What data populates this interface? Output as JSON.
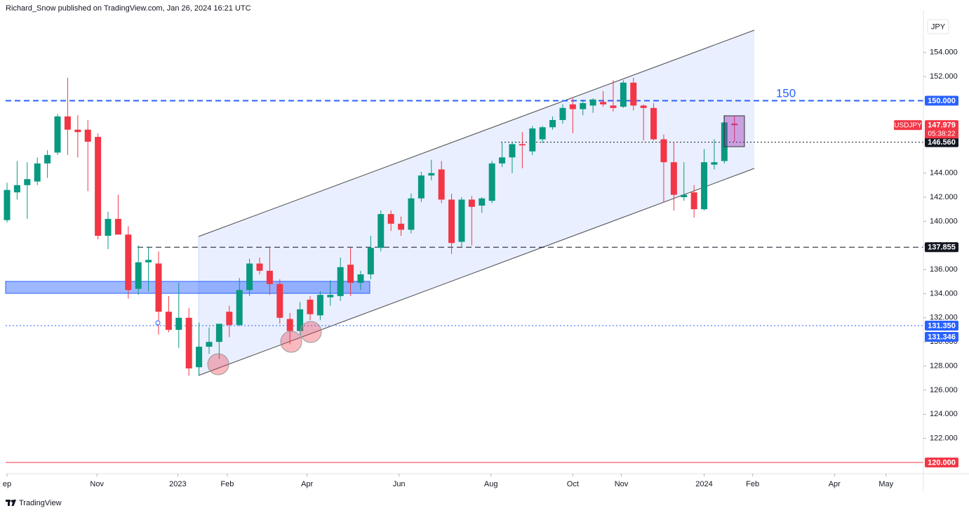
{
  "header": {
    "text": "Richard_Snow published on TradingView.com, Jan 26, 2024 16:21 UTC"
  },
  "footer": {
    "brand": "TradingView"
  },
  "chart_data": {
    "type": "candlestick",
    "currency": "JPY",
    "up_color": "#089981",
    "down_color": "#f23645",
    "x": [
      0,
      1,
      2,
      3,
      4,
      5,
      6,
      7,
      8,
      9,
      10,
      11,
      12,
      13,
      14,
      15,
      16,
      17,
      18,
      19,
      20,
      21,
      22,
      23,
      24,
      25,
      26,
      27,
      28,
      29,
      30,
      31,
      32,
      33,
      34,
      35,
      36,
      37,
      38,
      39,
      40,
      41,
      42,
      43,
      44,
      45,
      46,
      47,
      48,
      49,
      50,
      51,
      52,
      53,
      54,
      55,
      56,
      57,
      58,
      59,
      60,
      61,
      62,
      63,
      64,
      65,
      66,
      67,
      68,
      69,
      70,
      71,
      72
    ],
    "open": [
      140.1,
      142.4,
      143.0,
      143.3,
      144.8,
      145.7,
      148.7,
      147.6,
      147.6,
      147.0,
      138.8,
      140.2,
      138.9,
      134.4,
      136.6,
      136.5,
      132.5,
      131.0,
      132.0,
      127.9,
      129.6,
      130.0,
      132.5,
      131.4,
      134.3,
      136.5,
      135.9,
      134.8,
      131.9,
      130.9,
      133.5,
      132.2,
      133.7,
      133.8,
      136.4,
      134.9,
      135.6,
      137.8,
      140.6,
      139.8,
      139.3,
      141.9,
      143.8,
      144.3,
      141.8,
      138.3,
      141.8,
      141.3,
      141.7,
      144.8,
      145.3,
      146.4,
      145.8,
      146.8,
      147.8,
      148.4,
      149.7,
      149.3,
      149.6,
      149.9,
      149.6,
      149.5,
      151.5,
      149.6,
      149.4,
      146.8,
      144.9,
      142.0,
      142.4,
      141.0,
      144.7,
      145.0,
      148.1
    ],
    "high": [
      143.2,
      145.0,
      144.9,
      145.3,
      145.9,
      148.9,
      151.9,
      148.8,
      148.4,
      147.3,
      140.8,
      142.2,
      139.6,
      138.0,
      137.9,
      137.5,
      133.8,
      134.9,
      132.8,
      131.6,
      131.2,
      131.5,
      133.0,
      135.3,
      136.9,
      137.0,
      137.9,
      135.2,
      132.4,
      133.3,
      133.8,
      134.2,
      135.1,
      137.0,
      137.8,
      135.9,
      138.8,
      140.9,
      140.9,
      140.4,
      142.3,
      144.1,
      145.1,
      145.0,
      142.3,
      142.0,
      142.1,
      142.0,
      145.0,
      146.6,
      146.6,
      147.4,
      147.9,
      147.9,
      148.7,
      149.7,
      150.2,
      150.1,
      150.2,
      150.8,
      151.7,
      151.7,
      151.9,
      149.7,
      149.8,
      147.2,
      146.6,
      144.9,
      143.0,
      146.0,
      146.8,
      148.8,
      148.7
    ],
    "low": [
      139.9,
      141.8,
      140.2,
      143.0,
      143.6,
      145.5,
      145.5,
      145.3,
      142.5,
      138.5,
      137.7,
      138.9,
      133.6,
      133.9,
      134.2,
      130.6,
      130.8,
      129.5,
      127.2,
      127.2,
      129.0,
      128.6,
      130.4,
      131.3,
      133.8,
      135.6,
      133.9,
      131.5,
      129.8,
      130.6,
      131.8,
      131.8,
      133.0,
      133.4,
      133.8,
      134.3,
      135.2,
      137.5,
      139.2,
      138.8,
      139.0,
      141.6,
      143.4,
      141.5,
      137.3,
      137.9,
      138.0,
      140.7,
      141.5,
      144.5,
      144.0,
      144.4,
      145.5,
      146.5,
      147.6,
      148.1,
      147.3,
      148.8,
      149.0,
      149.5,
      149.1,
      149.4,
      149.2,
      146.7,
      146.7,
      141.6,
      140.9,
      141.7,
      140.3,
      140.9,
      144.3,
      144.8,
      146.6
    ],
    "close": [
      142.6,
      143.0,
      143.5,
      144.8,
      145.5,
      148.7,
      147.6,
      147.4,
      146.6,
      138.8,
      140.2,
      138.9,
      134.3,
      136.6,
      136.8,
      132.5,
      131.0,
      132.0,
      127.8,
      129.6,
      130.0,
      131.5,
      131.4,
      134.3,
      136.5,
      135.9,
      134.8,
      132.0,
      130.9,
      132.7,
      132.3,
      133.9,
      133.9,
      136.2,
      134.9,
      135.6,
      137.8,
      140.6,
      139.8,
      139.3,
      141.9,
      143.8,
      144.0,
      141.8,
      138.2,
      141.8,
      141.2,
      141.9,
      144.8,
      145.3,
      146.4,
      146.3,
      147.7,
      147.8,
      148.4,
      149.4,
      149.3,
      149.8,
      150.1,
      149.7,
      149.4,
      151.5,
      149.6,
      149.4,
      146.8,
      144.9,
      142.2,
      142.2,
      141.0,
      144.9,
      144.9,
      148.2,
      147.979
    ],
    "xlim": [
      -0.14,
      90.7
    ],
    "xticks": [
      {
        "value": 0,
        "label": "ep"
      },
      {
        "value": 8.9,
        "label": "Nov"
      },
      {
        "value": 16.9,
        "label": "2023"
      },
      {
        "value": 21.8,
        "label": "Feb"
      },
      {
        "value": 29.7,
        "label": "Apr"
      },
      {
        "value": 38.8,
        "label": "Jun"
      },
      {
        "value": 47.9,
        "label": "Aug"
      },
      {
        "value": 56,
        "label": "Oct"
      },
      {
        "value": 60.8,
        "label": "Nov"
      },
      {
        "value": 69,
        "label": "2024"
      },
      {
        "value": 73.8,
        "label": "Feb"
      },
      {
        "value": 81.9,
        "label": "Apr"
      },
      {
        "value": 87,
        "label": "May"
      }
    ],
    "ylim": [
      119.07,
      157.48
    ],
    "yticks": [
      {
        "value": 122,
        "label": "122.000"
      },
      {
        "value": 124,
        "label": "124.000"
      },
      {
        "value": 126,
        "label": "126.000"
      },
      {
        "value": 128,
        "label": "128.000"
      },
      {
        "value": 130,
        "label": "130.000"
      },
      {
        "value": 132,
        "label": "132.000"
      },
      {
        "value": 134,
        "label": "134.000"
      },
      {
        "value": 136,
        "label": "136.000"
      },
      {
        "value": 138,
        "label": "138.000"
      },
      {
        "value": 140,
        "label": "140.000"
      },
      {
        "value": 142,
        "label": "142.000"
      },
      {
        "value": 144,
        "label": "144.000"
      },
      {
        "value": 152,
        "label": "152.000"
      },
      {
        "value": 154,
        "label": "154.000"
      }
    ],
    "levels": [
      {
        "value": 150,
        "label": "150.000",
        "color": "#2962ff",
        "style": "dashed"
      },
      {
        "value": 146.56,
        "label": "146.560",
        "color": "#131722",
        "style": "dotted"
      },
      {
        "value": 137.855,
        "label": "137.855",
        "color": "#131722",
        "style": "dashed"
      },
      {
        "value": 131.35,
        "label": "131.350",
        "color": "#2962ff",
        "style": "dotted"
      },
      {
        "value": 131.346,
        "label": "131.346",
        "color": "#2962ff",
        "style": "none"
      },
      {
        "value": 120,
        "label": "120.000",
        "color": "#f23645",
        "style": "solid"
      }
    ],
    "last_price": {
      "value": 147.979,
      "label": "147.979",
      "symbol": "USDJPY",
      "countdown": "05:38:22",
      "color": "#f23645"
    },
    "annotations": [
      "150"
    ]
  }
}
